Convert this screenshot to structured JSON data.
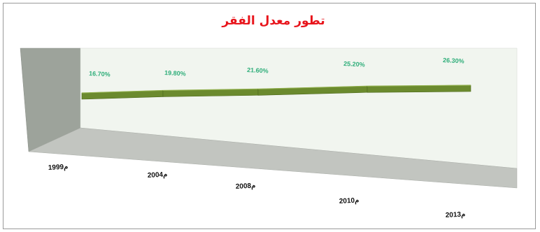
{
  "chart_data": {
    "type": "line",
    "title": "تطور معدل الفقر",
    "categories": [
      "م1999",
      "م2004",
      "م2008",
      "م2010",
      "م2013"
    ],
    "series": [
      {
        "values": [
          16.7,
          19.8,
          21.6,
          25.2,
          26.3
        ],
        "data_labels": [
          "16.70%",
          "19.80%",
          "21.60%",
          "25.20%",
          "26.30%"
        ],
        "color": "#6b8a2e"
      }
    ],
    "legend": "none",
    "grid": false,
    "style": "3d-line",
    "colors": {
      "title": "#e8141b",
      "data_labels": "#2fae7a",
      "back_wall": "#f1f5ef",
      "side_wall": "#9da39b",
      "floor": "#c2c5c0"
    }
  }
}
